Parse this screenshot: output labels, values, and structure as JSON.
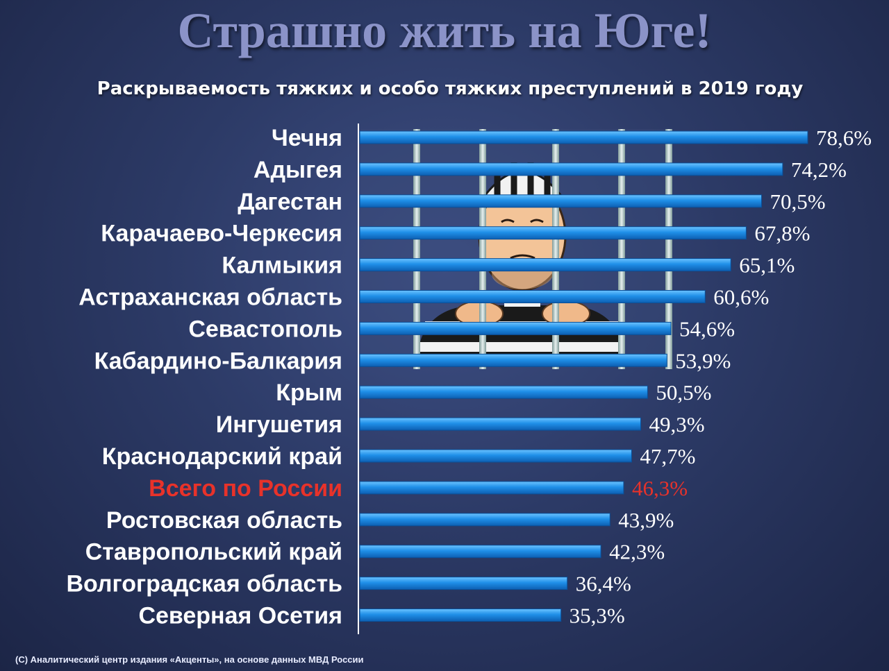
{
  "title": "Страшно жить на Юге!",
  "subtitle": "Раскрываемость тяжких и особо тяжких преступлений в 2019 году",
  "footer": "(C)  Аналитический  центр  издания  «Акценты», на основе данных МВД России",
  "colors": {
    "bar": "#1f8fe8",
    "bar_dark": "#0d63b8",
    "label": "#ffffff",
    "highlight": "#e8322a",
    "title": "#8b93c8"
  },
  "chart_data": {
    "type": "bar",
    "orientation": "horizontal",
    "categories": [
      "Чечня",
      "Адыгея",
      "Дагестан",
      "Карачаево-Черкесия",
      "Калмыкия",
      "Астраханская область",
      "Севастополь",
      "Кабардино-Балкария",
      "Крым",
      "Ингушетия",
      "Краснодарский край",
      "Всего по России",
      "Ростовская область",
      "Ставропольский край",
      "Волгоградская область",
      "Северная Осетия"
    ],
    "values": [
      78.6,
      74.2,
      70.5,
      67.8,
      65.1,
      60.6,
      54.6,
      53.9,
      50.5,
      49.3,
      47.7,
      46.3,
      43.9,
      42.3,
      36.4,
      35.3
    ],
    "value_labels": [
      "78,6%",
      "74,2%",
      "70,5%",
      "67,8%",
      "65,1%",
      "60,6%",
      "54,6%",
      "53,9%",
      "50,5%",
      "49,3%",
      "47,7%",
      "46,3%",
      "43,9%",
      "42,3%",
      "36,4%",
      "35,3%"
    ],
    "highlight_category": "Всего по России",
    "xlim": [
      0,
      78.6
    ],
    "grid": false,
    "legend": "none"
  }
}
